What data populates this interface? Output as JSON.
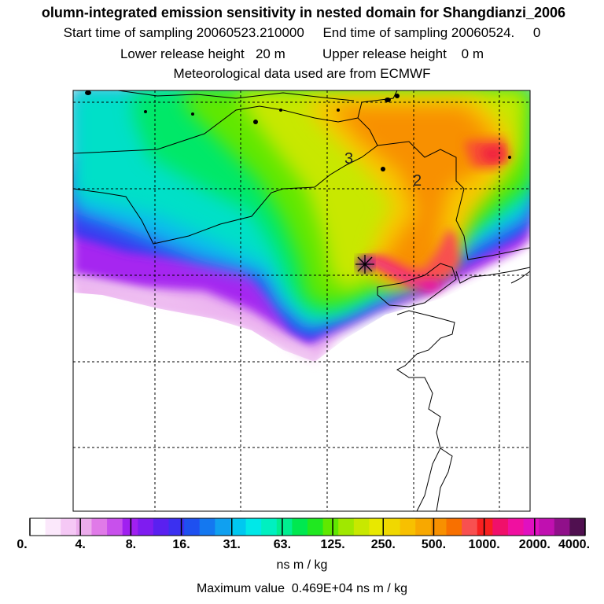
{
  "header": {
    "title": "olumn-integrated emission sensitivity in nested domain for Shangdianzi_2006",
    "line2": "Start time of sampling 20060523.210000     End time of sampling 20060524.     0",
    "line3": "Lower release height   20 m          Upper release height    0 m",
    "line4": "Meteorological data used are from ECMWF"
  },
  "map": {
    "region_labels": [
      "3",
      "2"
    ],
    "release_marker": "star-icon"
  },
  "colorbar": {
    "tick_labels": [
      "0.",
      "4.",
      "8.",
      "16.",
      "31.",
      "63.",
      "125.",
      "250.",
      "500.",
      "1000.",
      "2000.",
      "4000."
    ],
    "colors": [
      "#ffffff",
      "#fbe8fb",
      "#f5c8f5",
      "#ecacec",
      "#e07ae8",
      "#c850ec",
      "#a020f0",
      "#7f1cf0",
      "#5a20f0",
      "#3b30f0",
      "#1e50f0",
      "#1478f0",
      "#10a0f0",
      "#00c8f0",
      "#00e8e8",
      "#00f0c0",
      "#00ee90",
      "#00e850",
      "#20e820",
      "#60e800",
      "#a0e800",
      "#c8e800",
      "#e8e800",
      "#f0d800",
      "#f8c000",
      "#f8a800",
      "#f89000",
      "#f87000",
      "#f85050",
      "#f82020",
      "#f0106a",
      "#f010a0",
      "#e010c0",
      "#c010b0",
      "#90108a",
      "#501050"
    ],
    "units": "ns m / kg",
    "max_value": "Maximum value  0.469E+04 ns m / kg"
  }
}
